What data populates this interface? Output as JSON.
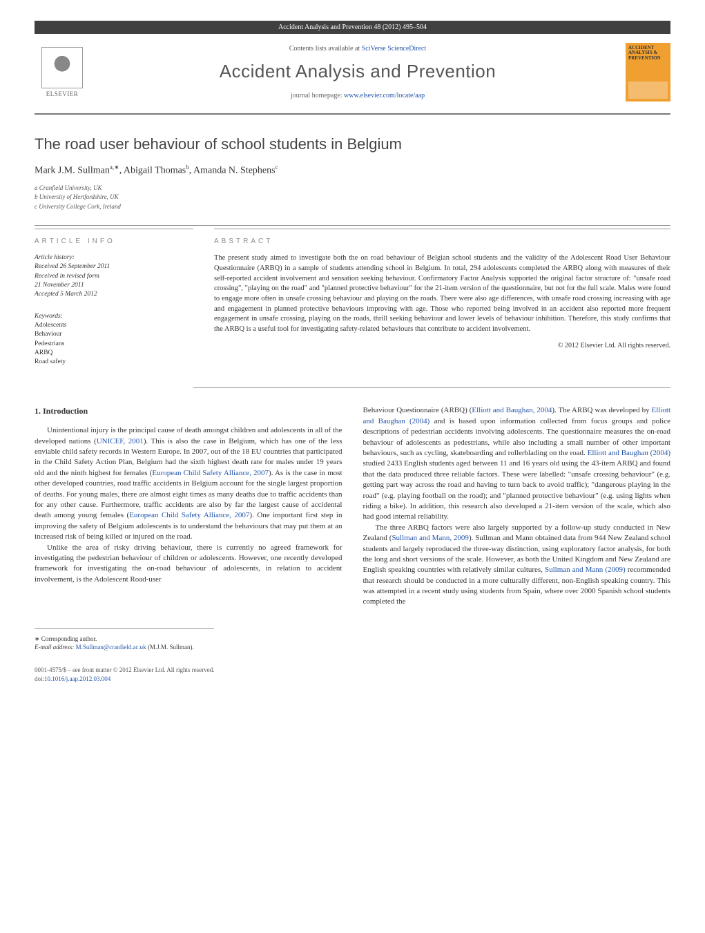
{
  "header": {
    "citation": "Accident Analysis and Prevention 48 (2012) 495–504",
    "contents_prefix": "Contents lists available at ",
    "contents_link": "SciVerse ScienceDirect",
    "journal_name": "Accident Analysis and Prevention",
    "homepage_prefix": "journal homepage: ",
    "homepage_link": "www.elsevier.com/locate/aap",
    "publisher_name": "ELSEVIER",
    "cover_title": "ACCIDENT ANALYSIS & PREVENTION"
  },
  "article": {
    "title": "The road user behaviour of school students in Belgium",
    "authors_line": "Mark J.M. Sullman",
    "author_a_sup": "a,∗",
    "author_b": ", Abigail Thomas",
    "author_b_sup": "b",
    "author_c": ", Amanda N. Stephens",
    "author_c_sup": "c",
    "affiliations": {
      "a": "a Cranfield University, UK",
      "b": "b University of Hertfordshire, UK",
      "c": "c University College Cork, Ireland"
    }
  },
  "info": {
    "heading": "ARTICLE INFO",
    "history_label": "Article history:",
    "received": "Received 26 September 2011",
    "revised1": "Received in revised form",
    "revised2": "21 November 2011",
    "accepted": "Accepted 5 March 2012",
    "keywords_label": "Keywords:",
    "keywords": [
      "Adolescents",
      "Behaviour",
      "Pedestrians",
      "ARBQ",
      "Road safety"
    ]
  },
  "abstract": {
    "heading": "ABSTRACT",
    "text": "The present study aimed to investigate both the on road behaviour of Belgian school students and the validity of the Adolescent Road User Behaviour Questionnaire (ARBQ) in a sample of students attending school in Belgium. In total, 294 adolescents completed the ARBQ along with measures of their self-reported accident involvement and sensation seeking behaviour. Confirmatory Factor Analysis supported the original factor structure of: \"unsafe road crossing\", \"playing on the road\" and \"planned protective behaviour\" for the 21-item version of the questionnaire, but not for the full scale. Males were found to engage more often in unsafe crossing behaviour and playing on the roads. There were also age differences, with unsafe road crossing increasing with age and engagement in planned protective behaviours improving with age. Those who reported being involved in an accident also reported more frequent engagement in unsafe crossing, playing on the roads, thrill seeking behaviour and lower levels of behaviour inhibition. Therefore, this study confirms that the ARBQ is a useful tool for investigating safety-related behaviours that contribute to accident involvement.",
    "copyright": "© 2012 Elsevier Ltd. All rights reserved."
  },
  "body": {
    "section_heading": "1. Introduction",
    "col1_p1_a": "Unintentional injury is the principal cause of death amongst children and adolescents in all of the developed nations (",
    "col1_p1_ref1": "UNICEF, 2001",
    "col1_p1_b": "). This is also the case in Belgium, which has one of the less enviable child safety records in Western Europe. In 2007, out of the 18 EU countries that participated in the Child Safety Action Plan, Belgium had the sixth highest death rate for males under 19 years old and the ninth highest for females (",
    "col1_p1_ref2": "European Child Safety Alliance, 2007",
    "col1_p1_c": "). As is the case in most other developed countries, road traffic accidents in Belgium account for the single largest proportion of deaths. For young males, there are almost eight times as many deaths due to traffic accidents than for any other cause. Furthermore, traffic accidents are also by far the largest cause of accidental death among young females (",
    "col1_p1_ref3": "European Child Safety Alliance, 2007",
    "col1_p1_d": "). One important first step in improving the safety of Belgium adolescents is to understand the behaviours that may put them at an increased risk of being killed or injured on the road.",
    "col1_p2": "Unlike the area of risky driving behaviour, there is currently no agreed framework for investigating the pedestrian behaviour of children or adolescents. However, one recently developed framework for investigating the on-road behaviour of adolescents, in relation to accident involvement, is the Adolescent Road-user",
    "col2_p1_a": "Behaviour Questionnaire (ARBQ) (",
    "col2_p1_ref1": "Elliott and Baughan, 2004",
    "col2_p1_b": "). The ARBQ was developed by ",
    "col2_p1_ref2": "Elliott and Baughan (2004)",
    "col2_p1_c": " and is based upon information collected from focus groups and police descriptions of pedestrian accidents involving adolescents. The questionnaire measures the on-road behaviour of adolescents as pedestrians, while also including a small number of other important behaviours, such as cycling, skateboarding and rollerblading on the road. ",
    "col2_p1_ref3": "Elliott and Baughan (2004)",
    "col2_p1_d": " studied 2433 English students aged between 11 and 16 years old using the 43-item ARBQ and found that the data produced three reliable factors. These were labelled: \"unsafe crossing behaviour\" (e.g. getting part way across the road and having to turn back to avoid traffic); \"dangerous playing in the road\" (e.g. playing football on the road); and \"planned protective behaviour\" (e.g. using lights when riding a bike). In addition, this research also developed a 21-item version of the scale, which also had good internal reliability.",
    "col2_p2_a": "The three ARBQ factors were also largely supported by a follow-up study conducted in New Zealand (",
    "col2_p2_ref1": "Sullman and Mann, 2009",
    "col2_p2_b": "). Sullman and Mann obtained data from 944 New Zealand school students and largely reproduced the three-way distinction, using exploratory factor analysis, for both the long and short versions of the scale. However, as both the United Kingdom and New Zealand are English speaking countries with relatively similar cultures, ",
    "col2_p2_ref2": "Sullman and Mann (2009)",
    "col2_p2_c": " recommended that research should be conducted in a more culturally different, non-English speaking country. This was attempted in a recent study using students from Spain, where over 2000 Spanish school students completed the"
  },
  "footer": {
    "corr_label": "∗ Corresponding author.",
    "email_label": "E-mail address: ",
    "email": "M.Sullman@cranfield.ac.uk",
    "email_tail": " (M.J.M. Sullman).",
    "issn": "0001-4575/$ – see front matter © 2012 Elsevier Ltd. All rights reserved.",
    "doi_label": "doi:",
    "doi": "10.1016/j.aap.2012.03.004"
  },
  "colors": {
    "header_bg": "#404040",
    "link": "#2255aa",
    "heading_gray": "#888888",
    "cover_bg": "#f0a030"
  }
}
